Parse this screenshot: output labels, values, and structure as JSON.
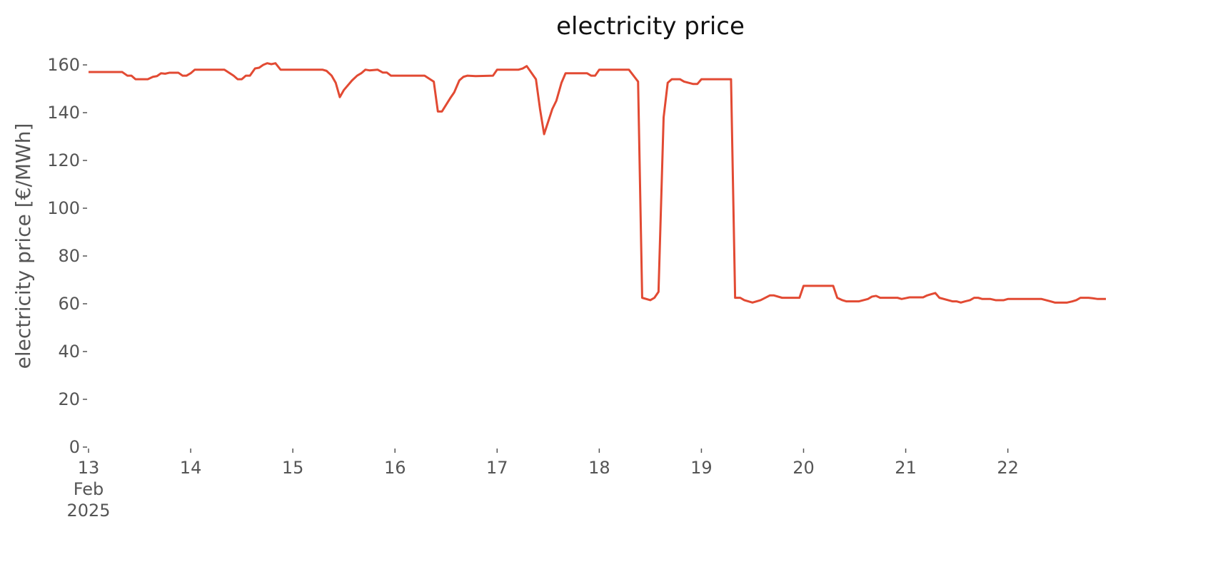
{
  "chart_data": {
    "type": "line",
    "title": "electricity price",
    "ylabel": "electricity price [€/MWh]",
    "x": [
      13.0,
      13.33,
      13.38,
      13.42,
      13.46,
      13.58,
      13.63,
      13.67,
      13.71,
      13.75,
      13.79,
      13.88,
      13.92,
      13.96,
      14.0,
      14.04,
      14.33,
      14.42,
      14.46,
      14.5,
      14.54,
      14.58,
      14.63,
      14.67,
      14.71,
      14.75,
      14.79,
      14.83,
      14.88,
      15.29,
      15.33,
      15.38,
      15.42,
      15.46,
      15.5,
      15.58,
      15.63,
      15.67,
      15.71,
      15.75,
      15.83,
      15.88,
      15.92,
      15.96,
      16.29,
      16.38,
      16.42,
      16.46,
      16.54,
      16.58,
      16.63,
      16.67,
      16.71,
      16.79,
      16.96,
      17.0,
      17.21,
      17.25,
      17.29,
      17.38,
      17.42,
      17.46,
      17.54,
      17.58,
      17.63,
      17.67,
      17.88,
      17.92,
      17.96,
      18.0,
      18.29,
      18.38,
      18.42,
      18.5,
      18.54,
      18.58,
      18.63,
      18.67,
      18.71,
      18.79,
      18.83,
      18.92,
      18.96,
      19.0,
      19.29,
      19.33,
      19.38,
      19.42,
      19.5,
      19.58,
      19.67,
      19.71,
      19.79,
      19.96,
      20.0,
      20.29,
      20.33,
      20.38,
      20.42,
      20.54,
      20.63,
      20.67,
      20.71,
      20.75,
      20.92,
      20.96,
      21.04,
      21.17,
      21.21,
      21.25,
      21.29,
      21.33,
      21.46,
      21.5,
      21.54,
      21.58,
      21.63,
      21.67,
      21.71,
      21.75,
      21.83,
      21.88,
      21.92,
      21.96,
      22.0,
      22.33,
      22.42,
      22.46,
      22.58,
      22.63,
      22.67,
      22.71,
      22.79,
      22.83,
      22.88,
      22.96
    ],
    "series": [
      {
        "name": "electricity price",
        "color": "#e24a33",
        "values": [
          157,
          157,
          155.5,
          155.5,
          154,
          154,
          155,
          155.3,
          156.5,
          156.3,
          156.7,
          156.7,
          155.5,
          155.5,
          156.5,
          158,
          158,
          155.5,
          154,
          154,
          155.5,
          155.5,
          158.5,
          158.8,
          160,
          160.7,
          160.3,
          160.7,
          158,
          158,
          157.5,
          155.5,
          152.5,
          146.5,
          149.5,
          153.5,
          155.5,
          156.5,
          158,
          157.7,
          158,
          156.8,
          156.8,
          155.5,
          155.5,
          153,
          140.5,
          140.5,
          146,
          148.5,
          153.5,
          155,
          155.5,
          155.3,
          155.5,
          158,
          158,
          158.5,
          159.5,
          154,
          141.5,
          131,
          141.5,
          145,
          152.5,
          156.5,
          156.5,
          155.5,
          155.5,
          158,
          158,
          153,
          62.5,
          61.5,
          62.5,
          65,
          138,
          152.5,
          154,
          154,
          153,
          152,
          152,
          154,
          154,
          62.5,
          62.5,
          61.5,
          60.5,
          61.5,
          63.5,
          63.5,
          62.5,
          62.5,
          67.5,
          67.5,
          62.5,
          61.5,
          61,
          61,
          62,
          63,
          63.3,
          62.5,
          62.5,
          62,
          62.7,
          62.7,
          63.5,
          64,
          64.5,
          62.5,
          61,
          61,
          60.5,
          61,
          61.5,
          62.5,
          62.5,
          62,
          62,
          61.5,
          61.5,
          61.5,
          62,
          62,
          61,
          60.5,
          60.5,
          61,
          61.5,
          62.5,
          62.5,
          62.3,
          62,
          62
        ]
      }
    ],
    "xlim": [
      13,
      22.96
    ],
    "ylim": [
      0,
      160
    ],
    "xticks": [
      {
        "value": 13,
        "label": "13\nFeb\n2025"
      },
      14,
      15,
      16,
      17,
      18,
      19,
      20,
      21,
      22
    ],
    "yticks": [
      0,
      20,
      40,
      60,
      80,
      100,
      120,
      140,
      160
    ],
    "grid": false
  }
}
